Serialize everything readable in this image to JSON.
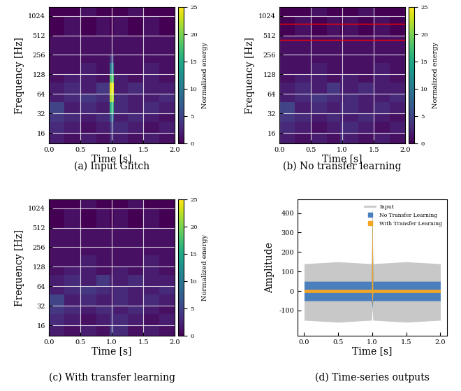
{
  "chart_data": [
    {
      "type": "heatmap",
      "caption": "(a) Input Glitch",
      "x_label": "Time [s]",
      "y_label": "Frequency [Hz]",
      "xlim": [
        0,
        2
      ],
      "ylim": [
        11,
        1400
      ],
      "xticks": [
        {
          "value": 0,
          "label": "0.0"
        },
        {
          "value": 0.5,
          "label": "0.5"
        },
        {
          "value": 1,
          "label": "1.0"
        },
        {
          "value": 1.5,
          "label": "1.5"
        },
        {
          "value": 2,
          "label": "2.0"
        }
      ],
      "yticks": [
        16,
        32,
        64,
        128,
        256,
        512,
        1024
      ],
      "log": "y",
      "grid": true,
      "time_edges": [
        0,
        0.25,
        0.5,
        0.75,
        0.97,
        1.03,
        1.25,
        1.5,
        1.75,
        2.0
      ],
      "freq_edges": [
        11,
        16,
        24,
        32,
        48,
        64,
        96,
        128,
        192,
        256,
        512,
        1024,
        1400
      ],
      "cells": [
        [
          2,
          1,
          2,
          1,
          3,
          2,
          1,
          2,
          1
        ],
        [
          3,
          2,
          1,
          2,
          4,
          3,
          2,
          1,
          2
        ],
        [
          4,
          3,
          2,
          3,
          8,
          2,
          3,
          2,
          1
        ],
        [
          5,
          2,
          3,
          2,
          16,
          3,
          2,
          3,
          2
        ],
        [
          2,
          3,
          4,
          3,
          22,
          3,
          2,
          2,
          3
        ],
        [
          2,
          3,
          2,
          4,
          24,
          2,
          3,
          2,
          2
        ],
        [
          1,
          2,
          2,
          1,
          18,
          2,
          1,
          2,
          1
        ],
        [
          1,
          1,
          2,
          1,
          10,
          1,
          1,
          2,
          1
        ],
        [
          1,
          1,
          1,
          1,
          4,
          1,
          1,
          1,
          1
        ],
        [
          1,
          1,
          1,
          1,
          1,
          1,
          1,
          1,
          1
        ],
        [
          0,
          1,
          0,
          1,
          0,
          1,
          0,
          1,
          0
        ],
        [
          0,
          0,
          1,
          0,
          0,
          0,
          1,
          0,
          0
        ]
      ],
      "colorbar": {
        "label": "Normalized energy",
        "range": [
          0,
          25
        ],
        "ticks": [
          0,
          5,
          10,
          15,
          20,
          25
        ]
      }
    },
    {
      "type": "heatmap",
      "caption": "(b) No transfer learning",
      "x_label": "Time [s]",
      "y_label": "Frequency [Hz]",
      "xlim": [
        0,
        2
      ],
      "ylim": [
        11,
        1400
      ],
      "xticks": [
        {
          "value": 0,
          "label": "0.0"
        },
        {
          "value": 0.5,
          "label": "0.5"
        },
        {
          "value": 1,
          "label": "1.0"
        },
        {
          "value": 1.5,
          "label": "1.5"
        },
        {
          "value": 2,
          "label": "2.0"
        }
      ],
      "yticks": [
        16,
        32,
        64,
        128,
        256,
        512,
        1024
      ],
      "log": "y",
      "grid": true,
      "time_edges": [
        0,
        0.25,
        0.5,
        0.75,
        0.97,
        1.03,
        1.25,
        1.5,
        1.75,
        2.0
      ],
      "freq_edges": [
        11,
        16,
        24,
        32,
        48,
        64,
        96,
        128,
        192,
        256,
        512,
        1024,
        1400
      ],
      "cells": [
        [
          2,
          1,
          2,
          1,
          3,
          2,
          1,
          2,
          1
        ],
        [
          3,
          2,
          1,
          2,
          3,
          3,
          2,
          1,
          2
        ],
        [
          4,
          3,
          2,
          3,
          2,
          2,
          3,
          2,
          1
        ],
        [
          5,
          2,
          3,
          2,
          3,
          3,
          2,
          3,
          2
        ],
        [
          2,
          3,
          4,
          3,
          2,
          3,
          2,
          2,
          3
        ],
        [
          2,
          3,
          2,
          4,
          2,
          2,
          3,
          2,
          2
        ],
        [
          1,
          2,
          2,
          1,
          2,
          2,
          1,
          2,
          1
        ],
        [
          1,
          1,
          2,
          1,
          1,
          1,
          1,
          2,
          1
        ],
        [
          1,
          1,
          1,
          1,
          1,
          1,
          1,
          1,
          1
        ],
        [
          1,
          1,
          1,
          1,
          1,
          1,
          1,
          1,
          1
        ],
        [
          0,
          1,
          0,
          1,
          0,
          1,
          0,
          1,
          0
        ],
        [
          0,
          0,
          1,
          0,
          0,
          0,
          1,
          0,
          0
        ]
      ],
      "hlines": [
        435,
        776
      ],
      "colorbar": {
        "label": "Normalized energy",
        "range": [
          0,
          25
        ],
        "ticks": [
          0,
          5,
          10,
          15,
          20,
          25
        ]
      }
    },
    {
      "type": "heatmap",
      "caption": "(c) With transfer learning",
      "x_label": "Time [s]",
      "y_label": "Frequency [Hz]",
      "xlim": [
        0,
        2
      ],
      "ylim": [
        11,
        1400
      ],
      "xticks": [
        {
          "value": 0,
          "label": "0.0"
        },
        {
          "value": 0.5,
          "label": "0.5"
        },
        {
          "value": 1,
          "label": "1.0"
        },
        {
          "value": 1.5,
          "label": "1.5"
        },
        {
          "value": 2,
          "label": "2.0"
        }
      ],
      "yticks": [
        16,
        32,
        64,
        128,
        256,
        512,
        1024
      ],
      "log": "y",
      "grid": true,
      "time_edges": [
        0,
        0.25,
        0.5,
        0.75,
        0.97,
        1.03,
        1.25,
        1.5,
        1.75,
        2.0
      ],
      "freq_edges": [
        11,
        16,
        24,
        32,
        48,
        64,
        96,
        128,
        192,
        256,
        512,
        1024,
        1400
      ],
      "cells": [
        [
          2,
          1,
          2,
          1,
          4,
          3,
          1,
          2,
          1
        ],
        [
          3,
          2,
          1,
          2,
          3,
          3,
          2,
          1,
          2
        ],
        [
          4,
          3,
          2,
          3,
          3,
          2,
          3,
          2,
          1
        ],
        [
          5,
          2,
          3,
          2,
          2,
          3,
          2,
          3,
          2
        ],
        [
          2,
          3,
          4,
          3,
          2,
          3,
          2,
          2,
          3
        ],
        [
          2,
          3,
          2,
          4,
          2,
          2,
          3,
          2,
          2
        ],
        [
          1,
          2,
          2,
          1,
          1,
          2,
          1,
          2,
          1
        ],
        [
          1,
          1,
          2,
          1,
          1,
          1,
          1,
          2,
          1
        ],
        [
          1,
          1,
          1,
          1,
          1,
          1,
          1,
          1,
          1
        ],
        [
          1,
          1,
          1,
          1,
          1,
          1,
          1,
          1,
          1
        ],
        [
          0,
          1,
          0,
          1,
          0,
          1,
          0,
          1,
          0
        ],
        [
          0,
          0,
          1,
          0,
          0,
          0,
          1,
          0,
          0
        ]
      ],
      "colorbar": {
        "label": "Normalized energy",
        "range": [
          0,
          25
        ],
        "ticks": [
          0,
          5,
          10,
          15,
          20,
          25
        ]
      }
    },
    {
      "type": "band",
      "caption": "(d) Time-series outputs",
      "x_label": "Time [s]",
      "y_label": "Amplitude",
      "xlim": [
        -0.1,
        2.1
      ],
      "ylim": [
        -230,
        470
      ],
      "xticks": [
        {
          "value": 0,
          "label": "0.0"
        },
        {
          "value": 0.5,
          "label": "0.5"
        },
        {
          "value": 1,
          "label": "1.0"
        },
        {
          "value": 1.5,
          "label": "1.5"
        },
        {
          "value": 2,
          "label": "2.0"
        }
      ],
      "yticks": [
        -100,
        0,
        100,
        200,
        300,
        400
      ],
      "legend": "upper right",
      "x": [
        0.0,
        0.5,
        0.99,
        1.0,
        1.01,
        1.5,
        2.0
      ],
      "series": [
        {
          "name": "Input",
          "color": "#c8c8c8",
          "marker": "line",
          "lower": [
            -150,
            -160,
            -150,
            -90,
            -150,
            -160,
            -150
          ],
          "upper": [
            140,
            150,
            140,
            430,
            140,
            150,
            140
          ]
        },
        {
          "name": "No Transfer Learning",
          "color": "#4a7fbd",
          "marker": "s",
          "lower": [
            -50,
            -50,
            -50,
            -85,
            -50,
            -50,
            -50
          ],
          "upper": [
            50,
            50,
            50,
            430,
            50,
            50,
            50
          ]
        },
        {
          "name": "With Transfer Learning",
          "color": "#f5a623",
          "marker": "s",
          "lower": [
            -8,
            -8,
            -8,
            -75,
            -8,
            -8,
            -8
          ],
          "upper": [
            8,
            8,
            8,
            420,
            8,
            8,
            8
          ]
        }
      ]
    }
  ]
}
